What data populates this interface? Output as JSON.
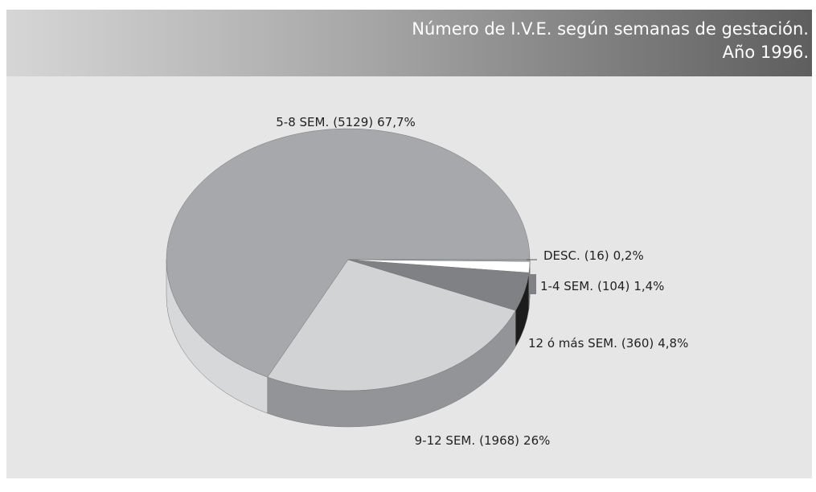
{
  "chart_data": {
    "type": "pie3d",
    "title": "Número de I.V.E. según semanas de gestación.",
    "subtitle": "Año 1996.",
    "categories": [
      "5-8 SEM.",
      "9-12 SEM.",
      "12 ó más SEM.",
      "1-4 SEM.",
      "DESC."
    ],
    "values": [
      5129,
      1968,
      360,
      104,
      16
    ],
    "value_labels": [
      "(5129)",
      "(1968)",
      "(360)",
      "(104)",
      "(16)"
    ],
    "percents": [
      67.7,
      26,
      4.8,
      1.4,
      0.2
    ],
    "percent_labels": [
      "67,7%",
      "26%",
      "4,8%",
      "1,4%",
      "0,2%"
    ],
    "colors": [
      "#a7a8ab",
      "#d2d3d5",
      "#808184",
      "#ffffff",
      "#a7a8ab"
    ]
  }
}
